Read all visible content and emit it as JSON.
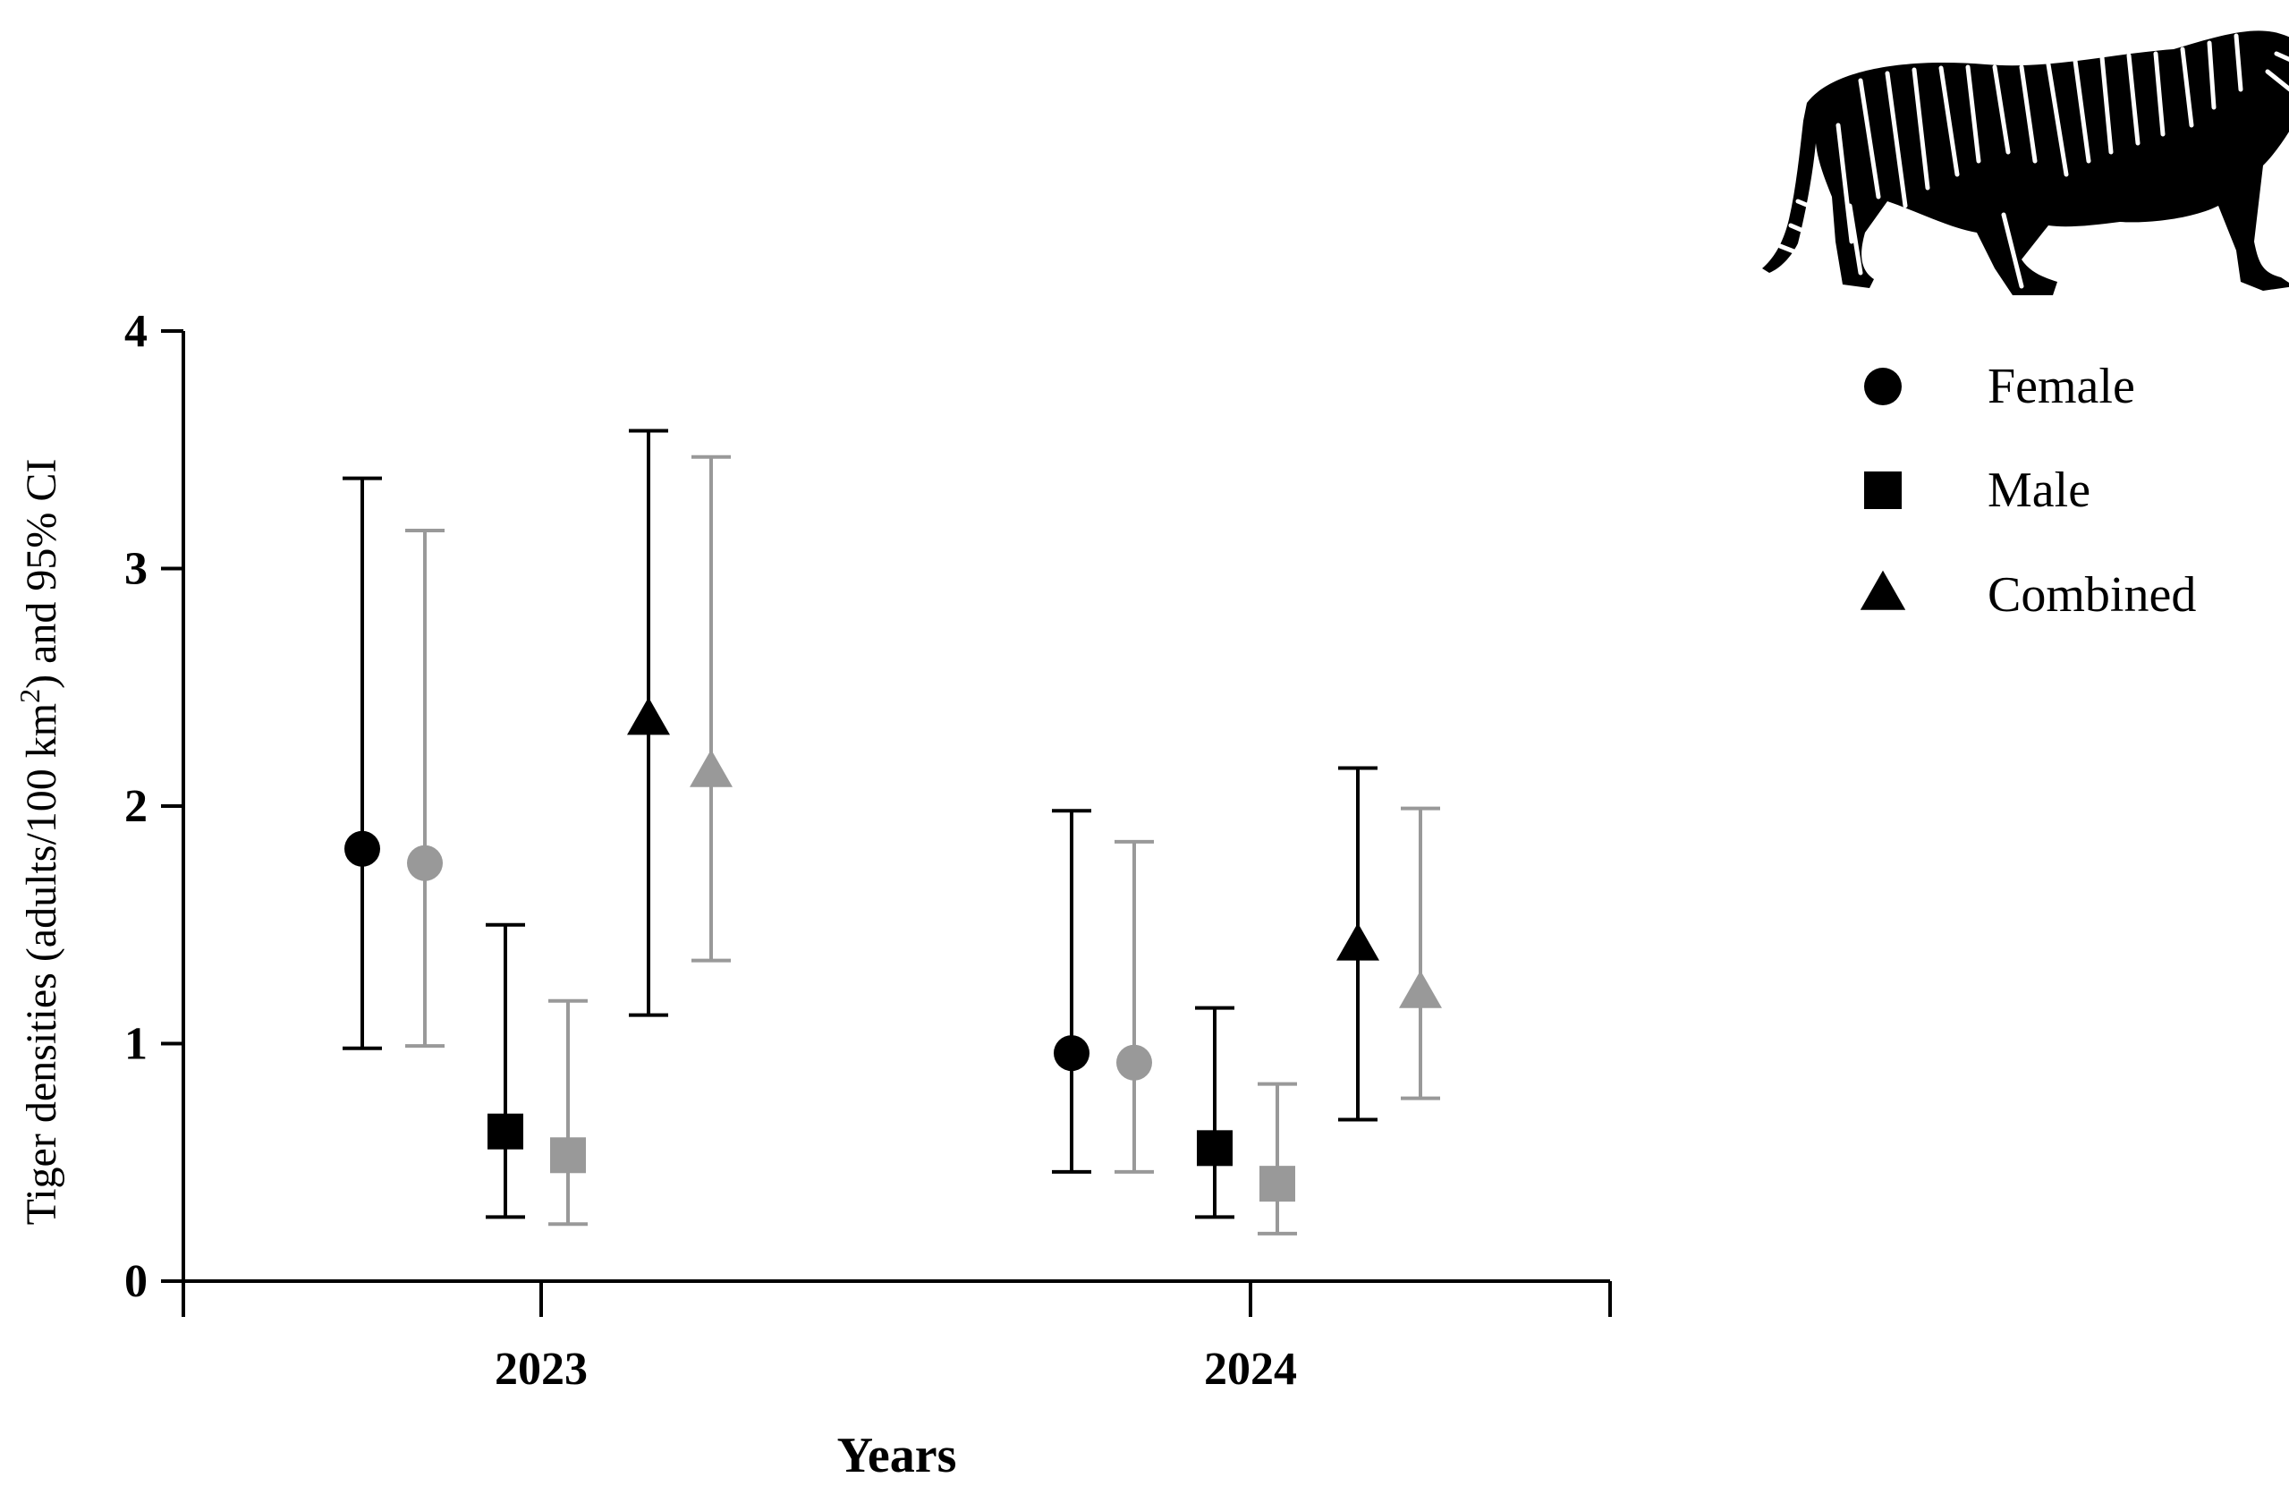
{
  "chart_data": {
    "type": "scatter",
    "title": "",
    "xlabel": "Years",
    "ylabel_main": "Tiger densities (adults/100 km",
    "ylabel_sup": "2",
    "ylabel_tail": ") and 95% CI",
    "categories": [
      "2023",
      "2024"
    ],
    "ylim": [
      0,
      4
    ],
    "yticks": [
      "0",
      "1",
      "2",
      "3",
      "4"
    ],
    "grid": false,
    "legend_position": "top-right",
    "colors": {
      "black": "#000000",
      "gray": "#999999"
    },
    "legend": [
      {
        "label": "Female",
        "marker": "circle"
      },
      {
        "label": "Male",
        "marker": "square"
      },
      {
        "label": "Combined",
        "marker": "triangle"
      }
    ],
    "points": [
      {
        "category": "2023",
        "group": "Female",
        "marker": "circle",
        "color": "black",
        "value": 1.82,
        "lower": 0.98,
        "upper": 3.38
      },
      {
        "category": "2023",
        "group": "Female",
        "marker": "circle",
        "color": "gray",
        "value": 1.76,
        "lower": 0.99,
        "upper": 3.16
      },
      {
        "category": "2023",
        "group": "Male",
        "marker": "square",
        "color": "black",
        "value": 0.63,
        "lower": 0.27,
        "upper": 1.5
      },
      {
        "category": "2023",
        "group": "Male",
        "marker": "square",
        "color": "gray",
        "value": 0.53,
        "lower": 0.24,
        "upper": 1.18
      },
      {
        "category": "2023",
        "group": "Combined",
        "marker": "triangle",
        "color": "black",
        "value": 2.36,
        "lower": 1.12,
        "upper": 3.58
      },
      {
        "category": "2023",
        "group": "Combined",
        "marker": "triangle",
        "color": "gray",
        "value": 2.14,
        "lower": 1.35,
        "upper": 3.47
      },
      {
        "category": "2024",
        "group": "Female",
        "marker": "circle",
        "color": "black",
        "value": 0.96,
        "lower": 0.46,
        "upper": 1.98
      },
      {
        "category": "2024",
        "group": "Female",
        "marker": "circle",
        "color": "gray",
        "value": 0.92,
        "lower": 0.46,
        "upper": 1.85
      },
      {
        "category": "2024",
        "group": "Male",
        "marker": "square",
        "color": "black",
        "value": 0.56,
        "lower": 0.27,
        "upper": 1.15
      },
      {
        "category": "2024",
        "group": "Male",
        "marker": "square",
        "color": "gray",
        "value": 0.41,
        "lower": 0.2,
        "upper": 0.83
      },
      {
        "category": "2024",
        "group": "Combined",
        "marker": "triangle",
        "color": "black",
        "value": 1.41,
        "lower": 0.68,
        "upper": 2.16
      },
      {
        "category": "2024",
        "group": "Combined",
        "marker": "triangle",
        "color": "gray",
        "value": 1.21,
        "lower": 0.77,
        "upper": 1.99
      }
    ],
    "illustration": "tiger-silhouette"
  }
}
